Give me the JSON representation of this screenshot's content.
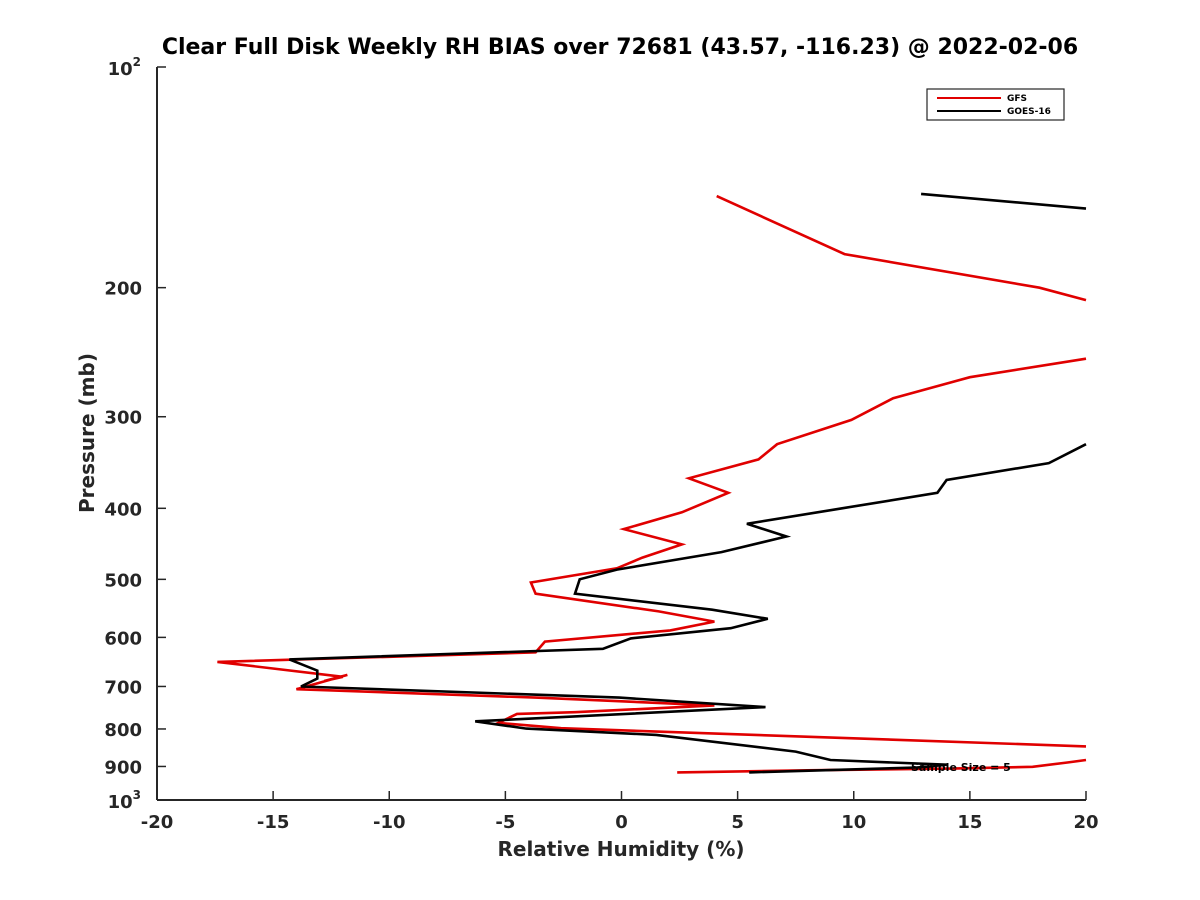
{
  "chart_data": {
    "type": "line",
    "title": "Clear Full Disk Weekly RH BIAS over 72681 (43.57, -116.23) @ 2022-02-06",
    "xlabel": "Relative Humidity (%)",
    "ylabel": "Pressure (mb)",
    "xlim": [
      -20,
      20
    ],
    "ylim": [
      100,
      1000
    ],
    "y_scale": "log",
    "y_reversed": true,
    "grid": false,
    "legend_position": "top-right",
    "x_ticks": [
      "-20",
      "-15",
      "-10",
      "-5",
      "0",
      "5",
      "10",
      "15",
      "20"
    ],
    "y_ticks": [
      {
        "value": 100,
        "base": "10",
        "exp": "2"
      },
      {
        "value": 200,
        "label": "200"
      },
      {
        "value": 300,
        "label": "300"
      },
      {
        "value": 400,
        "label": "400"
      },
      {
        "value": 500,
        "label": "500"
      },
      {
        "value": 600,
        "label": "600"
      },
      {
        "value": 700,
        "label": "700"
      },
      {
        "value": 800,
        "label": "800"
      },
      {
        "value": 900,
        "label": "900"
      },
      {
        "value": 1000,
        "base": "10",
        "exp": "3"
      }
    ],
    "annotation": "Sample Size = 5",
    "series": [
      {
        "name": "GFS",
        "color": "#e00000",
        "segments": [
          [
            [
              4.1,
              150
            ],
            [
              9.6,
              180
            ],
            [
              18,
              200
            ],
            [
              20,
              208
            ]
          ],
          [
            [
              20,
              250
            ],
            [
              15,
              265
            ],
            [
              11.7,
              283
            ],
            [
              9.9,
              303
            ],
            [
              6.7,
              327
            ],
            [
              5.9,
              343
            ],
            [
              2.9,
              364
            ],
            [
              4.6,
              381
            ],
            [
              2.6,
              405
            ],
            [
              0.1,
              427
            ],
            [
              2.6,
              448
            ],
            [
              0.9,
              467
            ],
            [
              -0.2,
              483
            ],
            [
              -3.9,
              505
            ],
            [
              -3.7,
              523
            ],
            [
              1.6,
              553
            ],
            [
              4.0,
              571
            ],
            [
              2.1,
              587
            ],
            [
              -3.3,
              608
            ],
            [
              -3.7,
              629
            ],
            [
              -17.4,
              648
            ],
            [
              -12.0,
              679
            ],
            [
              -12.8,
              688
            ],
            [
              -11.8,
              675
            ],
            [
              -14.0,
              706
            ],
            [
              -3.7,
              725
            ],
            [
              4.0,
              743
            ],
            [
              -2.0,
              759
            ],
            [
              -4.5,
              763
            ],
            [
              -5.3,
              785
            ],
            [
              -2.6,
              798
            ],
            [
              20,
              845
            ]
          ],
          [
            [
              20,
              882
            ],
            [
              19.2,
              889
            ],
            [
              17.7,
              901
            ],
            [
              14.2,
              906
            ],
            [
              8.0,
              911
            ],
            [
              2.4,
              917
            ]
          ]
        ]
      },
      {
        "name": "GOES-16",
        "color": "#000000",
        "segments": [
          [
            [
              12.9,
              149
            ],
            [
              20,
              156
            ]
          ],
          [
            [
              20,
              327
            ],
            [
              18.4,
              347
            ],
            [
              14.0,
              366
            ],
            [
              13.6,
              381
            ],
            [
              9.5,
              400
            ],
            [
              5.4,
              420
            ],
            [
              7.1,
              437
            ],
            [
              4.3,
              459
            ],
            [
              -0.2,
              485
            ],
            [
              -1.8,
              500
            ],
            [
              -2.0,
              523
            ],
            [
              3.9,
              550
            ],
            [
              6.3,
              566
            ],
            [
              4.7,
              583
            ],
            [
              0.4,
              602
            ],
            [
              -0.8,
              622
            ],
            [
              -14.3,
              643
            ],
            [
              -13.1,
              666
            ],
            [
              -13.1,
              683
            ],
            [
              -13.8,
              700
            ],
            [
              -0.1,
              725
            ],
            [
              6.2,
              747
            ],
            [
              -6.3,
              781
            ],
            [
              -4.1,
              799
            ],
            [
              1.5,
              815
            ],
            [
              7.5,
              859
            ],
            [
              9.0,
              882
            ],
            [
              14.0,
              895
            ],
            [
              12.9,
              902
            ],
            [
              12.7,
              903
            ],
            [
              5.5,
              917
            ]
          ]
        ]
      }
    ]
  }
}
